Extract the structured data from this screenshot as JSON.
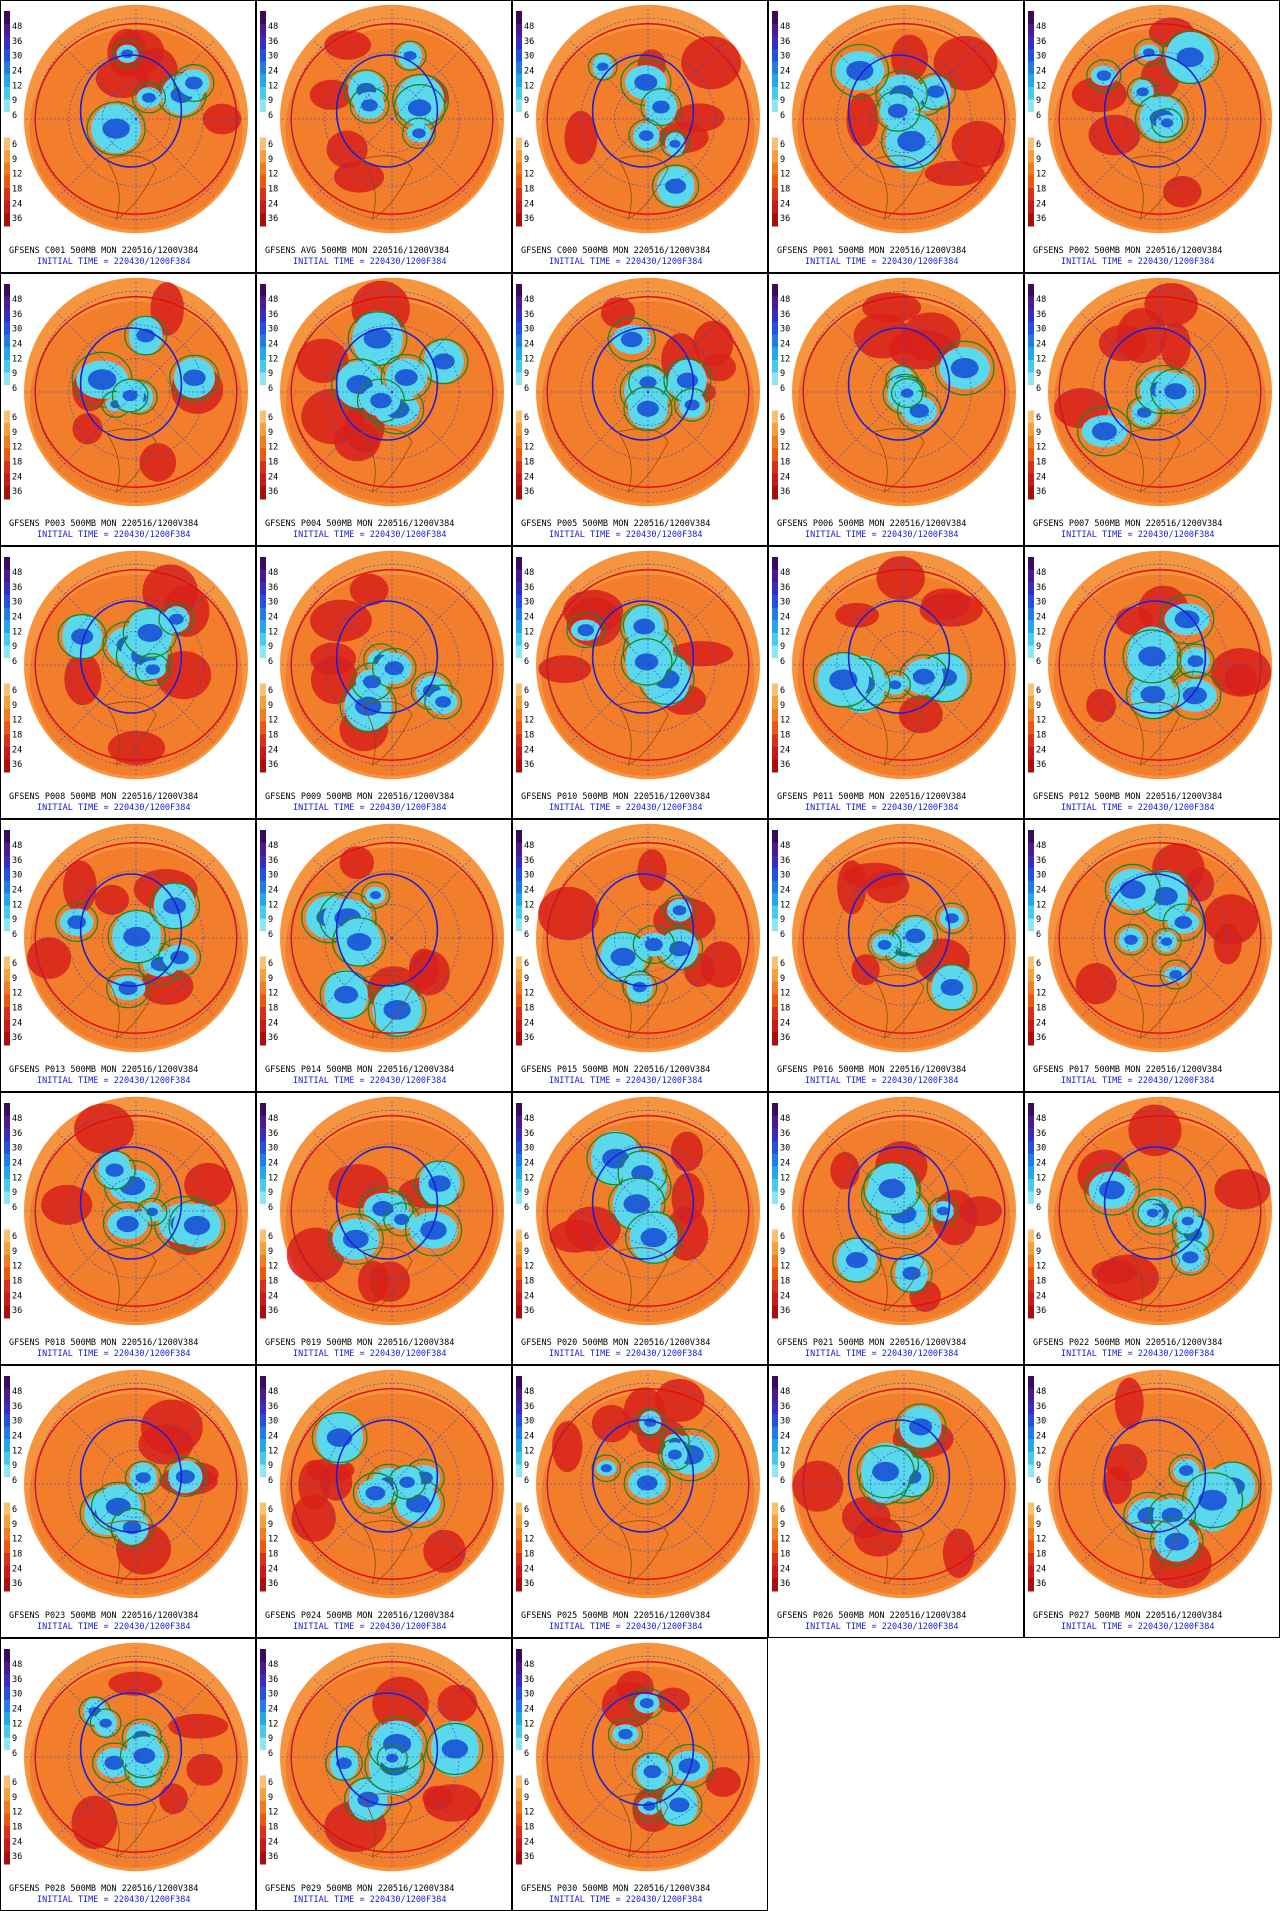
{
  "colorbar_labels": [
    "48",
    "36",
    "30",
    "24",
    "12",
    "9",
    "6",
    "6",
    "9",
    "12",
    "18",
    "24",
    "36"
  ],
  "panels": [
    {
      "title": "GFSENS C001 500MB MON 220516/1200V384",
      "initial_time": "INITIAL TIME = 220430/1200F384"
    },
    {
      "title": "GFSENS AVG 500MB MON 220516/1200V384",
      "initial_time": "INITIAL TIME = 220430/1200F384"
    },
    {
      "title": "GFSENS C000 500MB MON 220516/1200V384",
      "initial_time": "INITIAL TIME = 220430/1200F384"
    },
    {
      "title": "GFSENS P001 500MB MON 220516/1200V384",
      "initial_time": "INITIAL TIME = 220430/1200F384"
    },
    {
      "title": "GFSENS P002 500MB MON 220516/1200V384",
      "initial_time": "INITIAL TIME = 220430/1200F384"
    },
    {
      "title": "GFSENS P003 500MB MON 220516/1200V384",
      "initial_time": "INITIAL TIME = 220430/1200F384"
    },
    {
      "title": "GFSENS P004 500MB MON 220516/1200V384",
      "initial_time": "INITIAL TIME = 220430/1200F384"
    },
    {
      "title": "GFSENS P005 500MB MON 220516/1200V384",
      "initial_time": "INITIAL TIME = 220430/1200F384"
    },
    {
      "title": "GFSENS P006 500MB MON 220516/1200V384",
      "initial_time": "INITIAL TIME = 220430/1200F384"
    },
    {
      "title": "GFSENS P007 500MB MON 220516/1200V384",
      "initial_time": "INITIAL TIME = 220430/1200F384"
    },
    {
      "title": "GFSENS P008 500MB MON 220516/1200V384",
      "initial_time": "INITIAL TIME = 220430/1200F384"
    },
    {
      "title": "GFSENS P009 500MB MON 220516/1200V384",
      "initial_time": "INITIAL TIME = 220430/1200F384"
    },
    {
      "title": "GFSENS P010 500MB MON 220516/1200V384",
      "initial_time": "INITIAL TIME = 220430/1200F384"
    },
    {
      "title": "GFSENS P011 500MB MON 220516/1200V384",
      "initial_time": "INITIAL TIME = 220430/1200F384"
    },
    {
      "title": "GFSENS P012 500MB MON 220516/1200V384",
      "initial_time": "INITIAL TIME = 220430/1200F384"
    },
    {
      "title": "GFSENS P013 500MB MON 220516/1200V384",
      "initial_time": "INITIAL TIME = 220430/1200F384"
    },
    {
      "title": "GFSENS P014 500MB MON 220516/1200V384",
      "initial_time": "INITIAL TIME = 220430/1200F384"
    },
    {
      "title": "GFSENS P015 500MB MON 220516/1200V384",
      "initial_time": "INITIAL TIME = 220430/1200F384"
    },
    {
      "title": "GFSENS P016 500MB MON 220516/1200V384",
      "initial_time": "INITIAL TIME = 220430/1200F384"
    },
    {
      "title": "GFSENS P017 500MB MON 220516/1200V384",
      "initial_time": "INITIAL TIME = 220430/1200F384"
    },
    {
      "title": "GFSENS P018 500MB MON 220516/1200V384",
      "initial_time": "INITIAL TIME = 220430/1200F384"
    },
    {
      "title": "GFSENS P019 500MB MON 220516/1200V384",
      "initial_time": "INITIAL TIME = 220430/1200F384"
    },
    {
      "title": "GFSENS P020 500MB MON 220516/1200V384",
      "initial_time": "INITIAL TIME = 220430/1200F384"
    },
    {
      "title": "GFSENS P021 500MB MON 220516/1200V384",
      "initial_time": "INITIAL TIME = 220430/1200F384"
    },
    {
      "title": "GFSENS P022 500MB MON 220516/1200V384",
      "initial_time": "INITIAL TIME = 220430/1200F384"
    },
    {
      "title": "GFSENS P023 500MB MON 220516/1200V384",
      "initial_time": "INITIAL TIME = 220430/1200F384"
    },
    {
      "title": "GFSENS P024 500MB MON 220516/1200V384",
      "initial_time": "INITIAL TIME = 220430/1200F384"
    },
    {
      "title": "GFSENS P025 500MB MON 220516/1200V384",
      "initial_time": "INITIAL TIME = 220430/1200F384"
    },
    {
      "title": "GFSENS P026 500MB MON 220516/1200V384",
      "initial_time": "INITIAL TIME = 220430/1200F384"
    },
    {
      "title": "GFSENS P027 500MB MON 220516/1200V384",
      "initial_time": "INITIAL TIME = 220430/1200F384"
    },
    {
      "title": "GFSENS P028 500MB MON 220516/1200V384",
      "initial_time": "INITIAL TIME = 220430/1200F384"
    },
    {
      "title": "GFSENS P029 500MB MON 220516/1200V384",
      "initial_time": "INITIAL TIME = 220430/1200F384"
    },
    {
      "title": "GFSENS P030 500MB MON 220516/1200V384",
      "initial_time": "INITIAL TIME = 220430/1200F384"
    }
  ]
}
